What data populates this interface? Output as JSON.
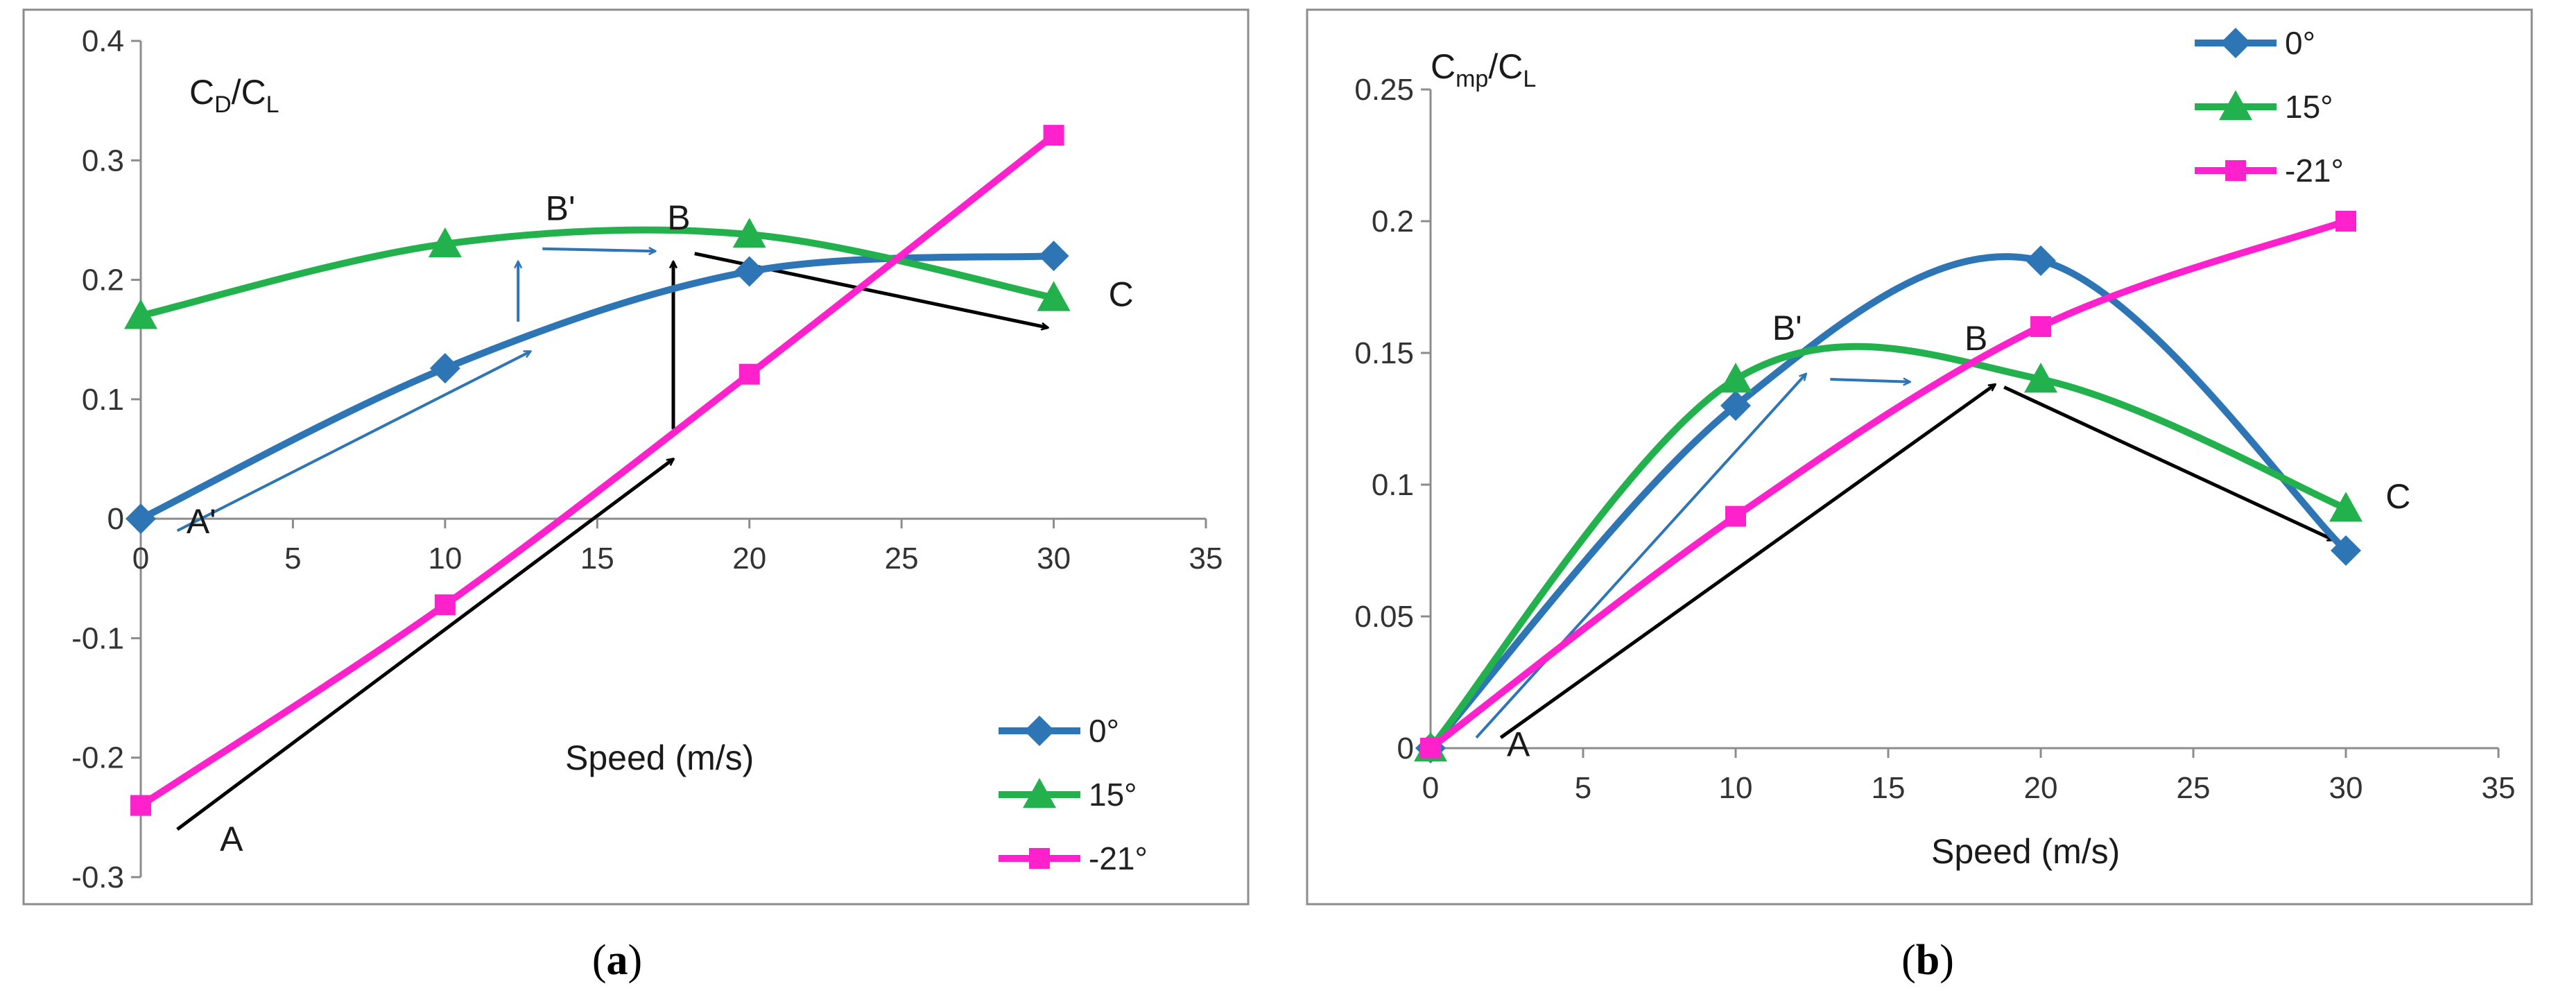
{
  "colors": {
    "series_0": "#2E75B6",
    "series_15": "#22B14C",
    "series_m21": "#FF22CC",
    "arrow_blue": "#2E75B6",
    "arrow_black": "#000000",
    "frame": "#8c8c8c"
  },
  "chart_data": [
    {
      "id": "a",
      "type": "line",
      "caption_label": "a",
      "ylabel_main": "C",
      "ylabel_sub1": "D",
      "ylabel_slash": "/C",
      "ylabel_sub2": "L",
      "xlabel": "Speed (m/s)",
      "xlim": [
        0,
        35
      ],
      "ylim": [
        -0.3,
        0.4
      ],
      "x_ticks": [
        0,
        5,
        10,
        15,
        20,
        25,
        30,
        35
      ],
      "x_tick_labels": [
        "0",
        "5",
        "10",
        "15",
        "20",
        "25",
        "30",
        "35"
      ],
      "y_ticks": [
        -0.3,
        -0.2,
        -0.1,
        0,
        0.1,
        0.2,
        0.3,
        0.4
      ],
      "y_tick_labels": [
        "-0.3",
        "-0.2",
        "-0.1",
        "0",
        "0.1",
        "0.2",
        "0.3",
        "0.4"
      ],
      "series": [
        {
          "name": "0°",
          "marker": "diamond",
          "color_key": "series_0",
          "x": [
            0,
            10,
            20,
            30
          ],
          "values": [
            0,
            0.126,
            0.207,
            0.22
          ]
        },
        {
          "name": "15°",
          "marker": "triangle",
          "color_key": "series_15",
          "x": [
            0,
            10,
            20,
            30
          ],
          "values": [
            0.17,
            0.23,
            0.238,
            0.185
          ]
        },
        {
          "name": "-21°",
          "marker": "square",
          "color_key": "series_m21",
          "x": [
            0,
            10,
            20,
            30
          ],
          "values": [
            -0.24,
            -0.072,
            0.121,
            0.321
          ]
        }
      ],
      "annotations": [
        {
          "text": "A",
          "x": 2.6,
          "y": -0.278
        },
        {
          "text": "A'",
          "x": 1.5,
          "y": -0.012
        },
        {
          "text": "B'",
          "x": 13.3,
          "y": 0.25
        },
        {
          "text": "B",
          "x": 17.3,
          "y": 0.242
        },
        {
          "text": "C",
          "x": 31.8,
          "y": 0.178
        }
      ],
      "arrows": [
        {
          "color_key": "arrow_black",
          "from": [
            1.2,
            -0.26
          ],
          "to": [
            17.5,
            0.05
          ]
        },
        {
          "color_key": "arrow_black",
          "from": [
            17.5,
            0.075
          ],
          "to": [
            17.5,
            0.215
          ]
        },
        {
          "color_key": "arrow_black",
          "from": [
            18.2,
            0.222
          ],
          "to": [
            29.8,
            0.16
          ]
        },
        {
          "color_key": "arrow_blue",
          "from": [
            1.2,
            -0.01
          ],
          "to": [
            12.8,
            0.14
          ]
        },
        {
          "color_key": "arrow_blue",
          "from": [
            12.4,
            0.165
          ],
          "to": [
            12.4,
            0.215
          ]
        },
        {
          "color_key": "arrow_blue",
          "from": [
            13.2,
            0.226
          ],
          "to": [
            16.9,
            0.224
          ]
        }
      ],
      "legend": {
        "position": "bottom-right"
      }
    },
    {
      "id": "b",
      "type": "line",
      "caption_label": "b",
      "ylabel_main": "C",
      "ylabel_sub1": "mp",
      "ylabel_slash": "/C",
      "ylabel_sub2": "L",
      "xlabel": "Speed (m/s)",
      "xlim": [
        0,
        35
      ],
      "ylim": [
        0,
        0.25
      ],
      "x_ticks": [
        0,
        5,
        10,
        15,
        20,
        25,
        30,
        35
      ],
      "x_tick_labels": [
        "0",
        "5",
        "10",
        "15",
        "20",
        "25",
        "30",
        "35"
      ],
      "y_ticks": [
        0,
        0.05,
        0.1,
        0.15,
        0.2,
        0.25
      ],
      "y_tick_labels": [
        "0",
        "0.05",
        "0.1",
        "0.15",
        "0.2",
        "0.25"
      ],
      "series": [
        {
          "name": "0°",
          "marker": "diamond",
          "color_key": "series_0",
          "x": [
            0,
            10,
            20,
            30
          ],
          "values": [
            0,
            0.13,
            0.185,
            0.075
          ]
        },
        {
          "name": "15°",
          "marker": "triangle",
          "color_key": "series_15",
          "x": [
            0,
            10,
            20,
            30
          ],
          "values": [
            0,
            0.14,
            0.14,
            0.091
          ]
        },
        {
          "name": "-21°",
          "marker": "square",
          "color_key": "series_m21",
          "x": [
            0,
            10,
            20,
            30
          ],
          "values": [
            0,
            0.088,
            0.16,
            0.2
          ]
        }
      ],
      "annotations": [
        {
          "text": "A",
          "x": 2.5,
          "y": -0.003
        },
        {
          "text": "B'",
          "x": 11.2,
          "y": 0.155
        },
        {
          "text": "B",
          "x": 17.5,
          "y": 0.151
        },
        {
          "text": "C",
          "x": 31.3,
          "y": 0.091
        }
      ],
      "arrows": [
        {
          "color_key": "arrow_black",
          "from": [
            2.3,
            0.004
          ],
          "to": [
            18.5,
            0.138
          ]
        },
        {
          "color_key": "arrow_black",
          "from": [
            18.8,
            0.137
          ],
          "to": [
            29.6,
            0.079
          ]
        },
        {
          "color_key": "arrow_blue",
          "from": [
            1.5,
            0.004
          ],
          "to": [
            12.3,
            0.142
          ]
        },
        {
          "color_key": "arrow_blue",
          "from": [
            13.1,
            0.14
          ],
          "to": [
            15.7,
            0.139
          ]
        }
      ],
      "legend": {
        "position": "top"
      }
    }
  ]
}
